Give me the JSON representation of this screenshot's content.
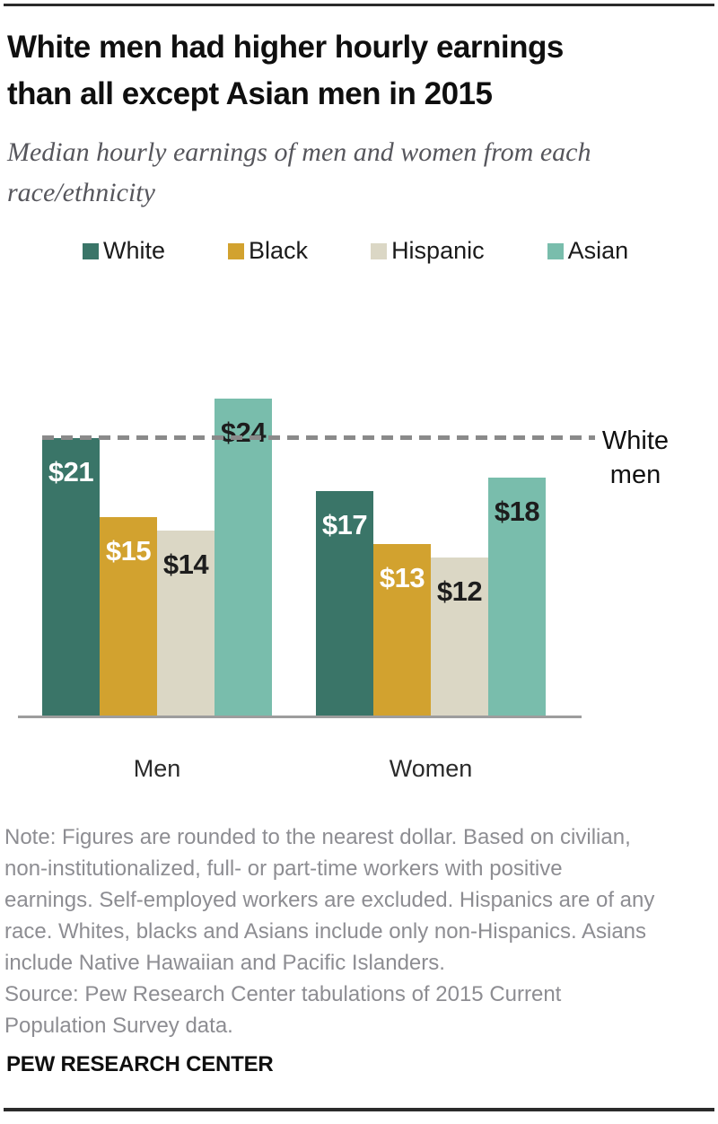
{
  "header": {
    "title_lines": [
      "White men had higher hourly earnings",
      "than all except Asian men in 2015"
    ],
    "subtitle_lines": [
      "Median hourly earnings of men and women from each",
      "race/ethnicity"
    ]
  },
  "chart_data": {
    "type": "bar",
    "categories": [
      "Men",
      "Women"
    ],
    "series": [
      {
        "name": "White",
        "color": "#3A7568",
        "label_color": "#FFFFFF",
        "values": [
          21,
          17
        ]
      },
      {
        "name": "Black",
        "color": "#D2A22F",
        "label_color": "#FFFFFF",
        "values": [
          15,
          13
        ]
      },
      {
        "name": "Hispanic",
        "color": "#DBD7C5",
        "label_color": "#1D1D1D",
        "values": [
          14,
          12
        ]
      },
      {
        "name": "Asian",
        "color": "#79BDAC",
        "label_color": "#1D1D1D",
        "values": [
          24,
          18
        ]
      }
    ],
    "value_prefix": "$",
    "value_labels_shown": [
      "$21",
      "$15",
      "$14",
      "$24",
      "$17",
      "$13",
      "$12",
      "$18"
    ],
    "reference_line": {
      "value": 21,
      "label": "White men",
      "color": "#8A8A8A",
      "style": "dashed"
    },
    "xlabel": "",
    "ylabel": "",
    "ylim": [
      0,
      27
    ],
    "grid": false,
    "legend_position": "top",
    "value_label_position": "inside-top"
  },
  "footer": {
    "note_lines": [
      "Note: Figures are rounded to the nearest dollar. Based on civilian,",
      "non-institutionalized, full- or part-time workers with positive",
      "earnings. Self-employed workers are excluded. Hispanics are of any",
      "race. Whites, blacks and Asians include only non-Hispanics. Asians",
      "include Native Hawaiian and Pacific Islanders."
    ],
    "source_lines": [
      "Source: Pew Research Center tabulations of 2015 Current",
      "Population Survey data."
    ],
    "brand": "PEW RESEARCH CENTER"
  }
}
